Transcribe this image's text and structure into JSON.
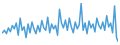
{
  "chart_data": {
    "type": "line",
    "x": [
      0,
      1,
      2,
      3,
      4,
      5,
      6,
      7,
      8,
      9,
      10,
      11,
      12,
      13,
      14,
      15,
      16,
      17,
      18,
      19,
      20,
      21,
      22,
      23,
      24,
      25,
      26,
      27,
      28,
      29,
      30,
      31,
      32,
      33,
      34,
      35,
      36,
      37,
      38,
      39,
      40,
      41,
      42,
      43,
      44,
      45,
      46,
      47,
      48,
      49,
      50,
      51,
      52,
      53,
      54,
      55,
      56,
      57,
      58,
      59
    ],
    "values": [
      40,
      45,
      38,
      50,
      42,
      55,
      48,
      60,
      35,
      70,
      45,
      52,
      30,
      58,
      40,
      62,
      48,
      38,
      55,
      42,
      65,
      50,
      45,
      72,
      40,
      58,
      48,
      55,
      35,
      88,
      60,
      50,
      66,
      45,
      70,
      52,
      40,
      62,
      48,
      56,
      100,
      45,
      60,
      38,
      64,
      50,
      58,
      42,
      70,
      55,
      48,
      62,
      45,
      75,
      52,
      60,
      40,
      95,
      30,
      20
    ],
    "color": "#4a9fd8",
    "xlim": [
      0,
      59
    ],
    "ylim": [
      20,
      100
    ],
    "grid": false,
    "tick_labels": false
  }
}
